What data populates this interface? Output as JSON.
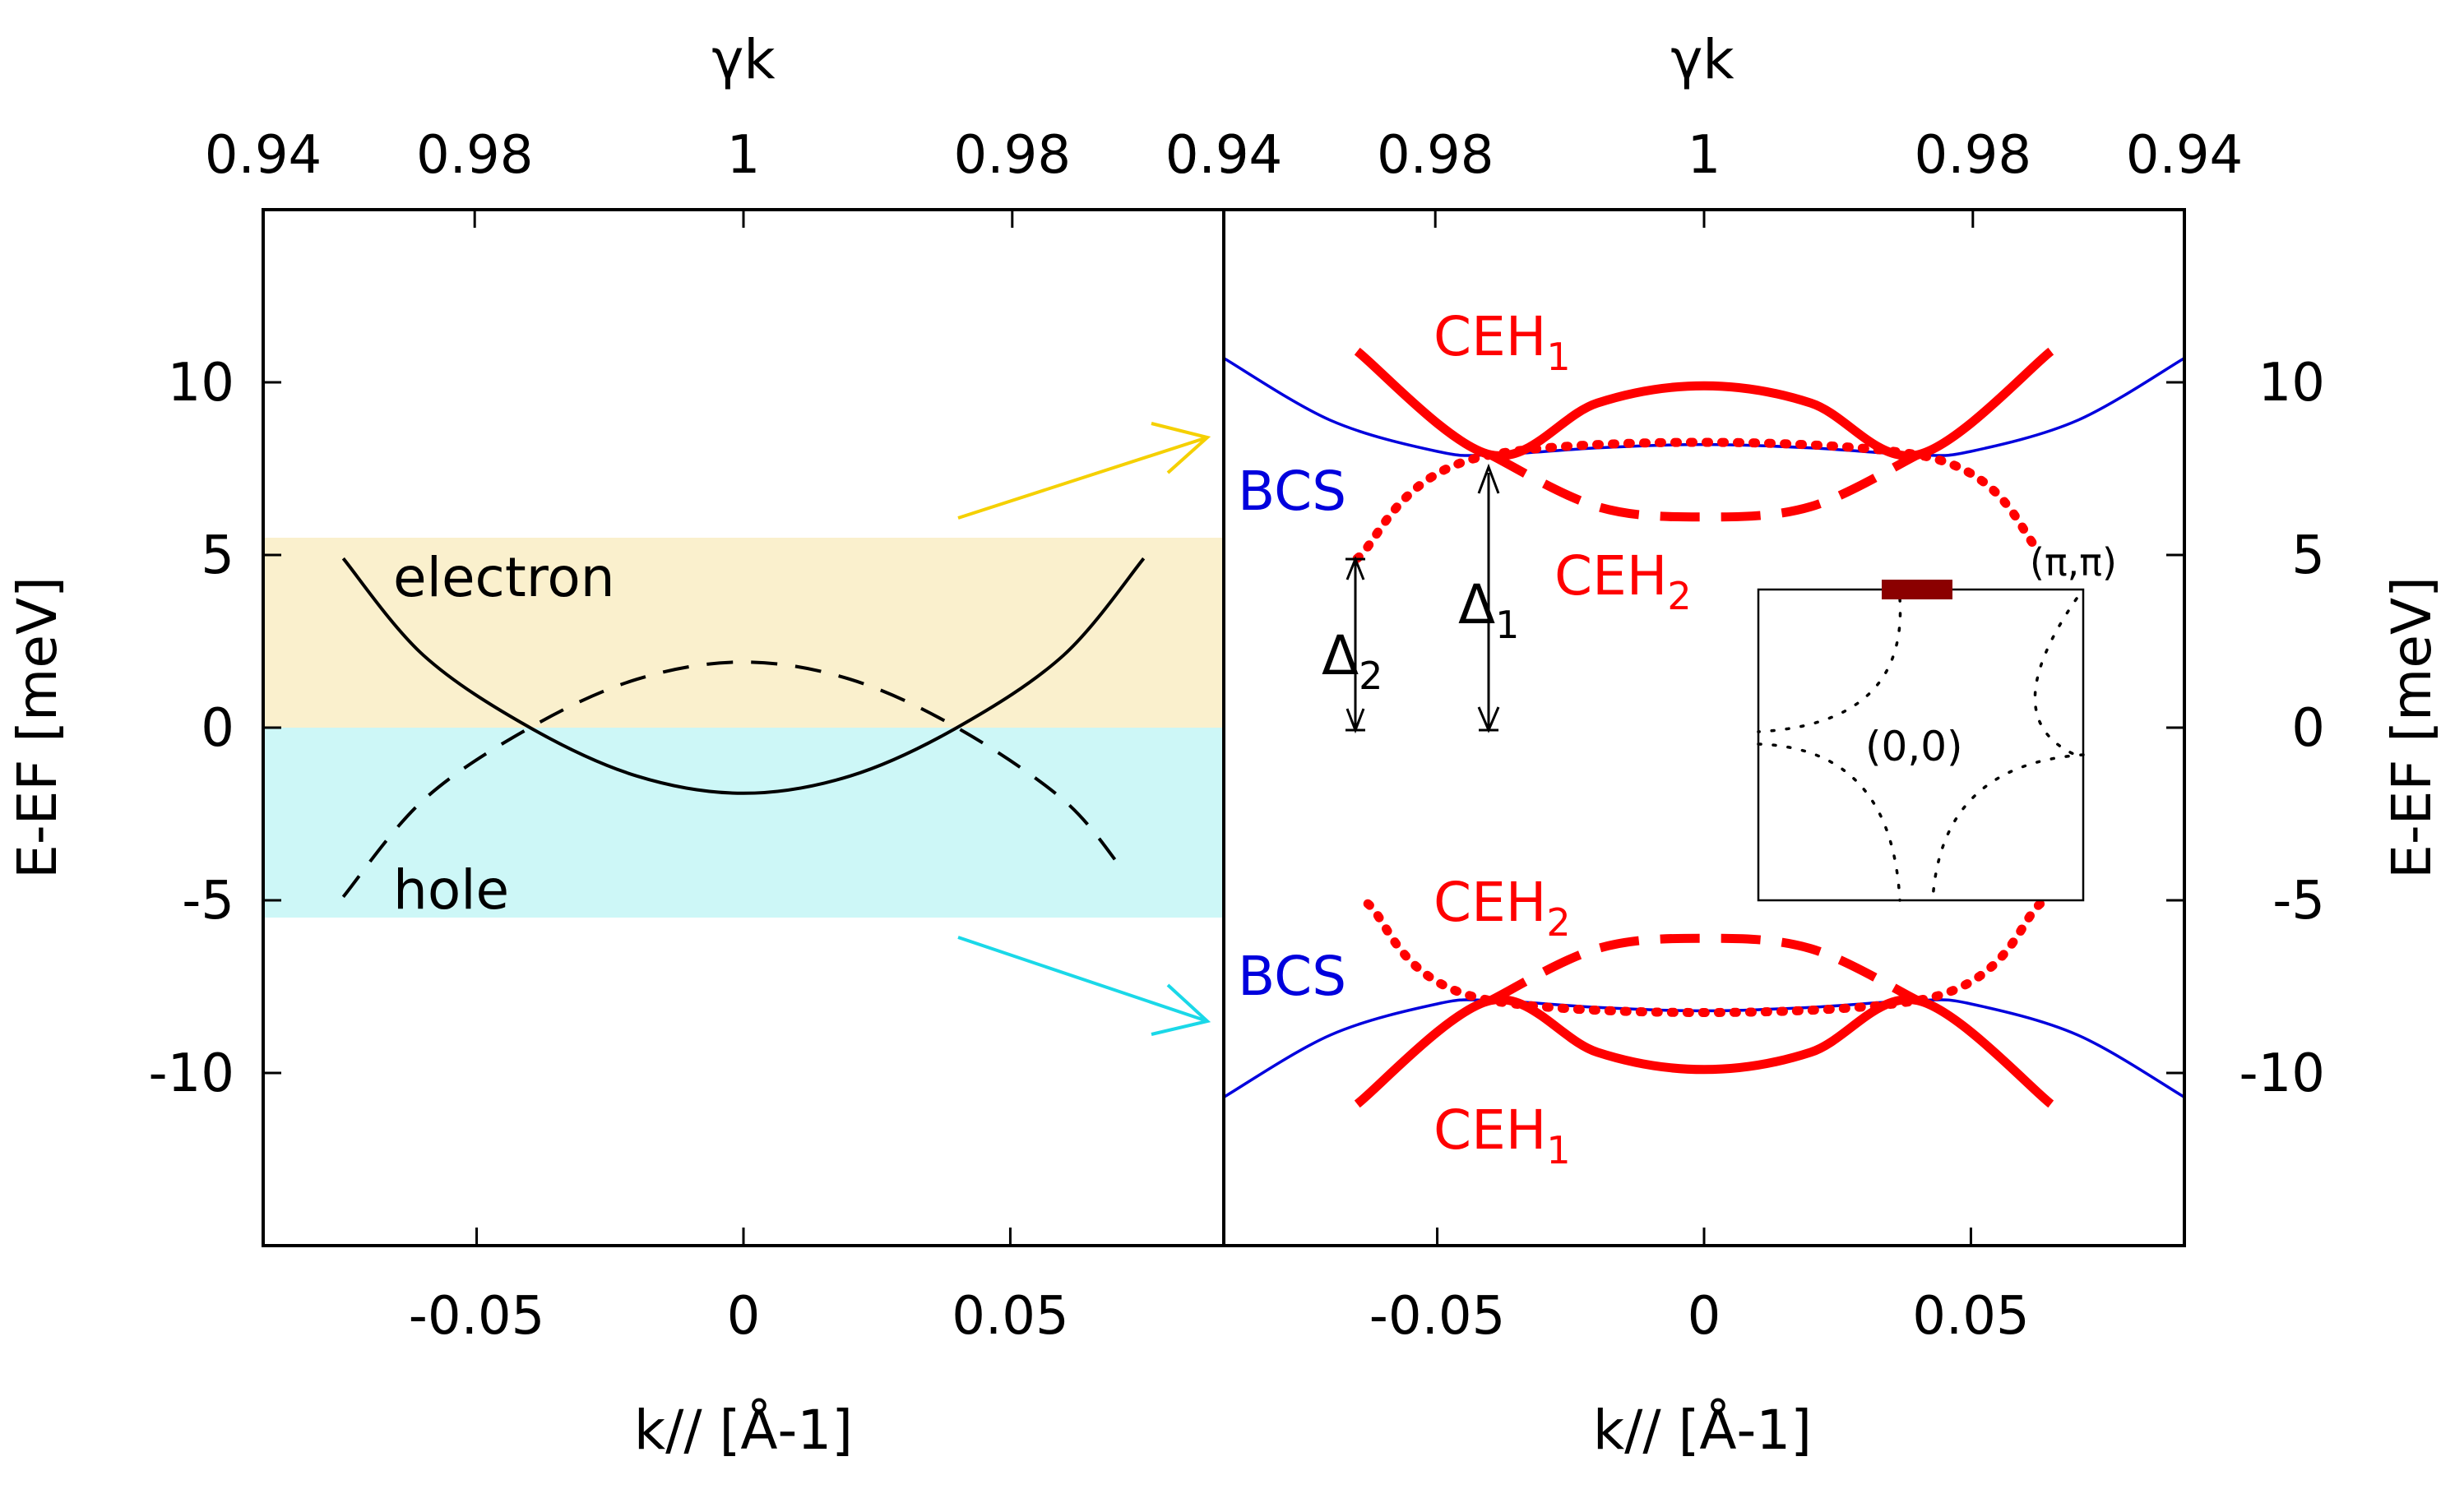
{
  "chart_data": [
    {
      "panel": "left",
      "type": "line",
      "xlabel": "k// [Å-1]",
      "ylabel": "E-EF [meV]",
      "top_axis_label": "γk",
      "top_tick_labels": [
        "0.94",
        "0.98",
        "1",
        "0.98",
        "0.94"
      ],
      "x_ticks": [
        -0.05,
        0,
        0.05
      ],
      "x_tick_labels": [
        "-0.05",
        "0",
        "0.05"
      ],
      "y_ticks": [
        -10,
        -5,
        0,
        5,
        10
      ],
      "y_tick_labels": [
        "-10",
        "-5",
        "0",
        "5",
        "10"
      ],
      "xlim": [
        -0.09,
        0.09
      ],
      "ylim": [
        -15,
        15
      ],
      "bands": [
        {
          "name": "electron",
          "ymin": 0,
          "ymax": 5.5,
          "color": "#faf0cd"
        },
        {
          "name": "hole",
          "ymin": -5.5,
          "ymax": 0,
          "color": "#cdf7f7"
        }
      ],
      "series": [
        {
          "name": "electron",
          "style": "solid",
          "color": "#000000",
          "x": [
            -0.075,
            -0.06,
            -0.04,
            -0.02,
            0,
            0.02,
            0.04,
            0.06,
            0.075
          ],
          "y": [
            4.9,
            2.1,
            0.0,
            -1.4,
            -1.9,
            -1.4,
            0.0,
            2.1,
            4.9
          ]
        },
        {
          "name": "hole",
          "style": "dashed",
          "color": "#000000",
          "x": [
            -0.075,
            -0.06,
            -0.04,
            -0.02,
            0,
            0.02,
            0.04,
            0.06,
            0.071
          ],
          "y": [
            -4.9,
            -2.1,
            0.0,
            1.4,
            1.9,
            1.4,
            0.0,
            -2.1,
            -4.1
          ]
        }
      ],
      "annotations": [
        {
          "text": "electron",
          "x": -0.065,
          "y": 4.3
        },
        {
          "text": "hole",
          "x": -0.065,
          "y": -4.7
        }
      ]
    },
    {
      "panel": "right",
      "type": "line",
      "xlabel": "k// [Å-1]",
      "ylabel": "E-EF [meV]",
      "top_axis_label": "γk",
      "top_tick_labels": [
        "0.94",
        "0.98",
        "1",
        "0.98",
        "0.94"
      ],
      "x_ticks": [
        -0.05,
        0,
        0.05
      ],
      "x_tick_labels": [
        "-0.05",
        "0",
        "0.05"
      ],
      "y_ticks": [
        -10,
        -5,
        0,
        5,
        10
      ],
      "y_tick_labels": [
        "-10",
        "-5",
        "0",
        "5",
        "10"
      ],
      "xlim": [
        -0.09,
        0.09
      ],
      "ylim": [
        -15,
        15
      ],
      "series": [
        {
          "name": "BCS",
          "color": "#0000dd",
          "style": "solid",
          "x": [
            -0.09,
            -0.07,
            -0.05,
            -0.04,
            -0.02,
            0,
            0.02,
            0.04,
            0.05,
            0.07,
            0.09
          ],
          "y": [
            10.7,
            8.9,
            8.0,
            7.9,
            8.1,
            8.2,
            8.1,
            7.9,
            8.0,
            8.9,
            10.7
          ]
        },
        {
          "name": "BCS (lower)",
          "color": "#0000dd",
          "style": "solid",
          "x": [
            -0.09,
            -0.07,
            -0.05,
            -0.04,
            -0.02,
            0,
            0.02,
            0.04,
            0.05,
            0.07,
            0.09
          ],
          "y": [
            -10.7,
            -8.9,
            -8.0,
            -7.9,
            -8.1,
            -8.2,
            -8.1,
            -7.9,
            -8.0,
            -8.9,
            -10.7
          ]
        },
        {
          "name": "CEH1",
          "color": "#ff0000",
          "style": "solid",
          "x": [
            -0.065,
            -0.04,
            -0.02,
            0,
            0.02,
            0.04,
            0.065
          ],
          "y": [
            10.9,
            7.9,
            9.4,
            9.9,
            9.4,
            7.9,
            10.9
          ]
        },
        {
          "name": "CEH1 (lower)",
          "color": "#ff0000",
          "style": "solid",
          "x": [
            -0.065,
            -0.04,
            -0.02,
            0,
            0.02,
            0.04,
            0.065
          ],
          "y": [
            -10.9,
            -7.9,
            -9.4,
            -9.9,
            -9.4,
            -7.9,
            -10.9
          ]
        },
        {
          "name": "CEH2",
          "color": "#ff0000",
          "style": "dashed",
          "x": [
            -0.04,
            -0.02,
            0,
            0.02,
            0.04
          ],
          "y": [
            7.9,
            6.4,
            6.1,
            6.4,
            7.9
          ]
        },
        {
          "name": "CEH2 (lower)",
          "color": "#ff0000",
          "style": "dashed",
          "x": [
            -0.04,
            -0.02,
            0,
            0.02,
            0.04
          ],
          "y": [
            -7.9,
            -6.4,
            -6.1,
            -6.4,
            -7.9
          ]
        },
        {
          "name": "CEH2 dotted",
          "color": "#ff0000",
          "style": "dotted",
          "x": [
            -0.065,
            -0.04,
            0.04,
            0.063
          ],
          "y": [
            4.9,
            7.9,
            7.9,
            5.1
          ]
        },
        {
          "name": "CEH2 dotted (lower)",
          "color": "#ff0000",
          "style": "dotted",
          "x": [
            -0.063,
            -0.04,
            0.04,
            0.063
          ],
          "y": [
            -5.1,
            -7.9,
            -7.9,
            -5.1
          ]
        }
      ],
      "annotations": [
        {
          "text": "CEH",
          "sub": "1",
          "x": -0.05,
          "y": 10.7,
          "color": "#ff0000"
        },
        {
          "text": "CEH",
          "sub": "2",
          "x": -0.027,
          "y": 4.3,
          "color": "#ff0000"
        },
        {
          "text": "CEH",
          "sub": "2",
          "x": -0.05,
          "y": -5.6,
          "color": "#ff0000"
        },
        {
          "text": "CEH",
          "sub": "1",
          "x": -0.05,
          "y": -12.3,
          "color": "#ff0000"
        },
        {
          "text": "BCS",
          "x": -0.087,
          "y": 6.5,
          "color": "#0000dd"
        },
        {
          "text": "BCS",
          "x": -0.087,
          "y": -8.3,
          "color": "#0000dd"
        },
        {
          "text": "Δ",
          "sub": "1",
          "x": -0.044,
          "y": 3.0,
          "color": "#000000"
        },
        {
          "text": "Δ",
          "sub": "2",
          "x": -0.07,
          "y": 1.8,
          "color": "#000000"
        },
        {
          "text": "(π,π)",
          "x": 0.062,
          "y": 4.8,
          "color": "#000000"
        },
        {
          "text": "(0,0)",
          "x": 0.029,
          "y": -0.6,
          "color": "#000000"
        }
      ]
    }
  ]
}
